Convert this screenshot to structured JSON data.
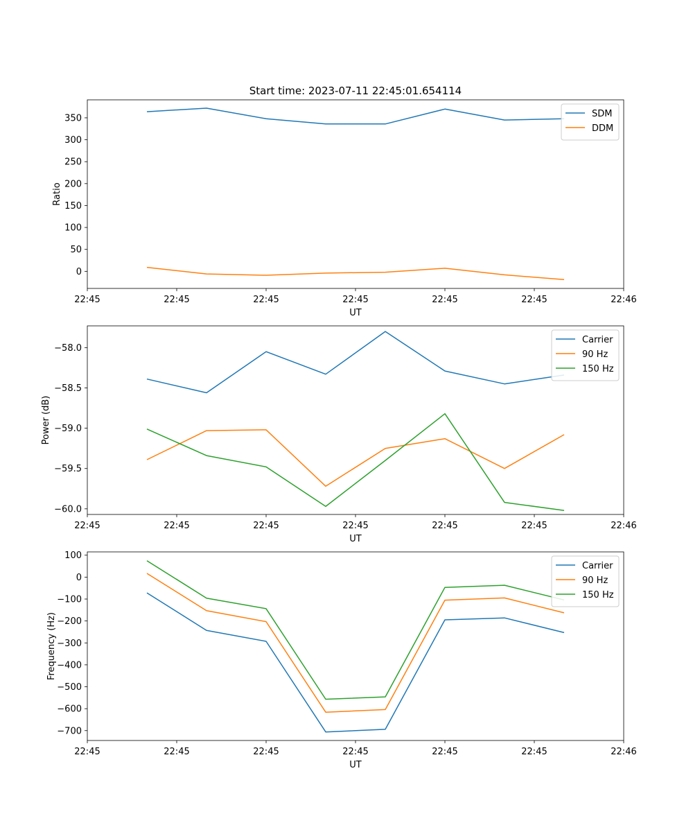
{
  "chart_data": [
    {
      "type": "line",
      "title": "Start time: 2023-07-11 22:45:01.654114",
      "xlabel": "UT",
      "ylabel": "Ratio",
      "xlim": [
        0,
        9
      ],
      "ylim": [
        -39,
        391
      ],
      "x": [
        1,
        2,
        3,
        4,
        5,
        6,
        7,
        8
      ],
      "x_ticks": [
        0,
        1.5,
        3,
        4.5,
        6,
        7.5,
        9
      ],
      "x_tick_labels": [
        "22:45",
        "22:45",
        "22:45",
        "22:45",
        "22:45",
        "22:45",
        "22:46"
      ],
      "y_ticks": [
        0,
        50,
        100,
        150,
        200,
        250,
        300,
        350
      ],
      "y_tick_labels": [
        "0",
        "50",
        "100",
        "150",
        "200",
        "250",
        "300",
        "350"
      ],
      "legend_position": "top-right",
      "series": [
        {
          "name": "SDM",
          "color": "#1f77b4",
          "values": [
            364,
            372,
            348,
            336,
            336,
            370,
            345,
            348
          ]
        },
        {
          "name": "DDM",
          "color": "#ff7f0e",
          "values": [
            9,
            -6,
            -9,
            -4,
            -2,
            7,
            -8,
            -19
          ]
        }
      ]
    },
    {
      "type": "line",
      "title": "",
      "xlabel": "UT",
      "ylabel": "Power (dB)",
      "xlim": [
        0,
        9
      ],
      "ylim": [
        -60.07,
        -57.73
      ],
      "x": [
        1,
        2,
        3,
        4,
        5,
        6,
        7,
        8
      ],
      "x_ticks": [
        0,
        1.5,
        3,
        4.5,
        6,
        7.5,
        9
      ],
      "x_tick_labels": [
        "22:45",
        "22:45",
        "22:45",
        "22:45",
        "22:45",
        "22:45",
        "22:46"
      ],
      "y_ticks": [
        -58.0,
        -58.5,
        -59.0,
        -59.5,
        -60.0
      ],
      "y_tick_labels": [
        "−58.0",
        "−58.5",
        "−59.0",
        "−59.5",
        "−60.0"
      ],
      "legend_position": "top-right",
      "series": [
        {
          "name": "Carrier",
          "color": "#1f77b4",
          "values": [
            -58.39,
            -58.56,
            -58.05,
            -58.33,
            -57.8,
            -58.29,
            -58.45,
            -58.34
          ]
        },
        {
          "name": "90 Hz",
          "color": "#ff7f0e",
          "values": [
            -59.39,
            -59.03,
            -59.02,
            -59.72,
            -59.25,
            -59.13,
            -59.5,
            -59.08
          ]
        },
        {
          "name": "150 Hz",
          "color": "#2ca02c",
          "values": [
            -59.01,
            -59.34,
            -59.48,
            -59.97,
            -59.4,
            -58.82,
            -59.92,
            -60.02
          ]
        }
      ]
    },
    {
      "type": "line",
      "title": "",
      "xlabel": "UT",
      "ylabel": "Frequency (Hz)",
      "xlim": [
        0,
        9
      ],
      "ylim": [
        -745,
        115
      ],
      "x": [
        1,
        2,
        3,
        4,
        5,
        6,
        7,
        8
      ],
      "x_ticks": [
        0,
        1.5,
        3,
        4.5,
        6,
        7.5,
        9
      ],
      "x_tick_labels": [
        "22:45",
        "22:45",
        "22:45",
        "22:45",
        "22:45",
        "22:45",
        "22:46"
      ],
      "y_ticks": [
        100,
        0,
        -100,
        -200,
        -300,
        -400,
        -500,
        -600,
        -700
      ],
      "y_tick_labels": [
        "100",
        "0",
        "−100",
        "−200",
        "−300",
        "−400",
        "−500",
        "−600",
        "−700"
      ],
      "legend_position": "top-right",
      "series": [
        {
          "name": "Carrier",
          "color": "#1f77b4",
          "values": [
            -72,
            -243,
            -293,
            -706,
            -694,
            -195,
            -186,
            -253
          ]
        },
        {
          "name": "90 Hz",
          "color": "#ff7f0e",
          "values": [
            17,
            -153,
            -203,
            -616,
            -604,
            -105,
            -95,
            -163
          ]
        },
        {
          "name": "150 Hz",
          "color": "#2ca02c",
          "values": [
            75,
            -96,
            -144,
            -557,
            -546,
            -47,
            -37,
            -104
          ]
        }
      ]
    }
  ]
}
